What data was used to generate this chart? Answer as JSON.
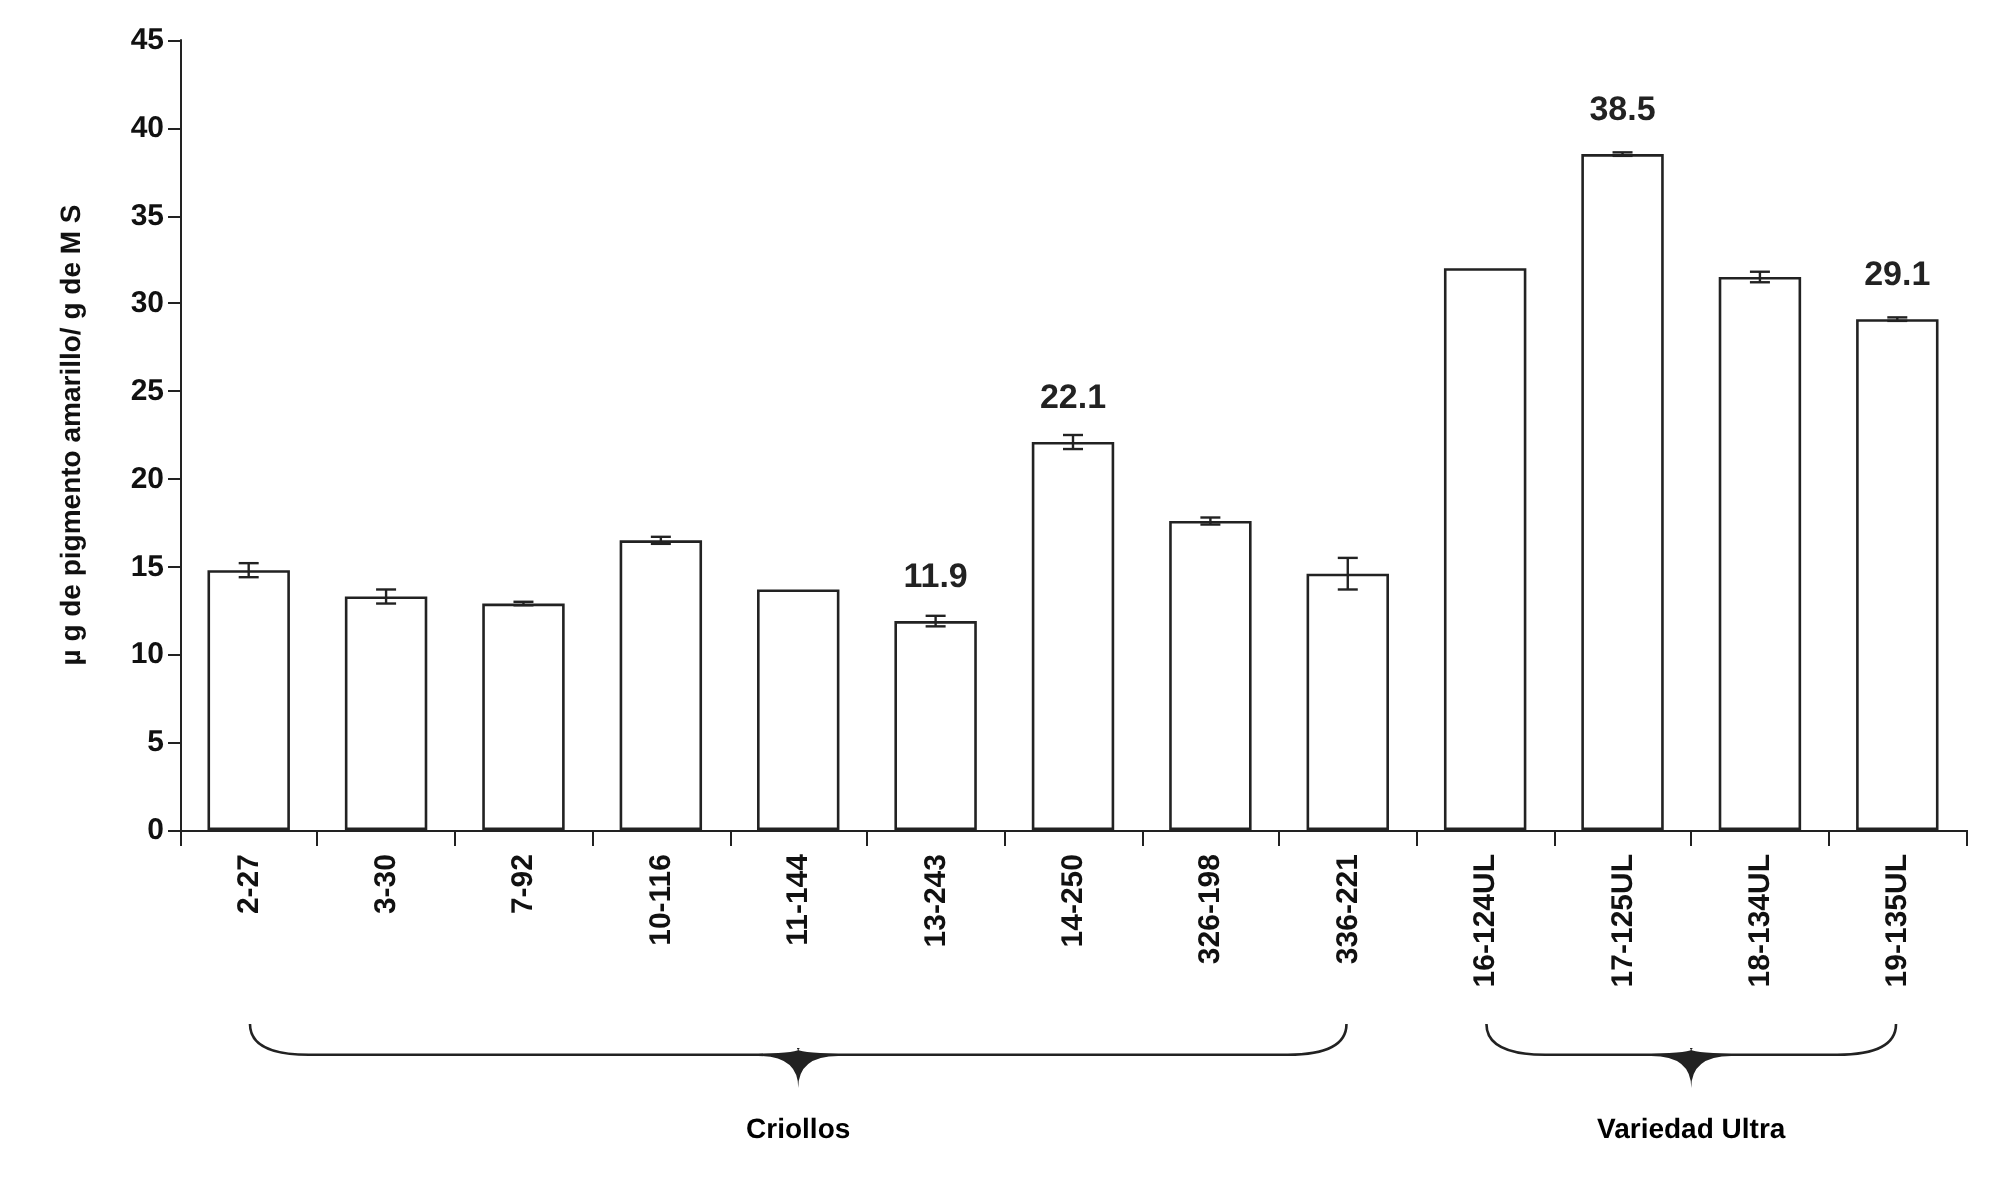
{
  "chart_data": {
    "type": "bar",
    "ylabel": "µ g de pigmento amarillo/ g de M S",
    "categories": [
      "2-27",
      "3-30",
      "7-92",
      "10-116",
      "11-144",
      "13-243",
      "14-250",
      "326-198",
      "336-221",
      "16-124UL",
      "17-125UL",
      "18-134UL",
      "19-135UL"
    ],
    "values": [
      14.8,
      13.3,
      12.9,
      16.5,
      13.7,
      11.9,
      22.1,
      17.6,
      14.6,
      32.0,
      38.5,
      31.5,
      29.1
    ],
    "errors": [
      0.4,
      0.4,
      0.1,
      0.2,
      null,
      0.3,
      0.4,
      0.2,
      0.9,
      null,
      0.1,
      0.3,
      0.1
    ],
    "value_labels": [
      null,
      null,
      null,
      null,
      null,
      "11.9",
      "22.1",
      null,
      null,
      null,
      "38.5",
      null,
      "29.1"
    ],
    "color": "#ffffff",
    "ylim": [
      0,
      45
    ],
    "yticks": [
      0,
      5,
      10,
      15,
      20,
      25,
      30,
      35,
      40,
      45
    ],
    "grid": false,
    "annotations": [
      "Criollos",
      "Variedad Ultra"
    ]
  }
}
